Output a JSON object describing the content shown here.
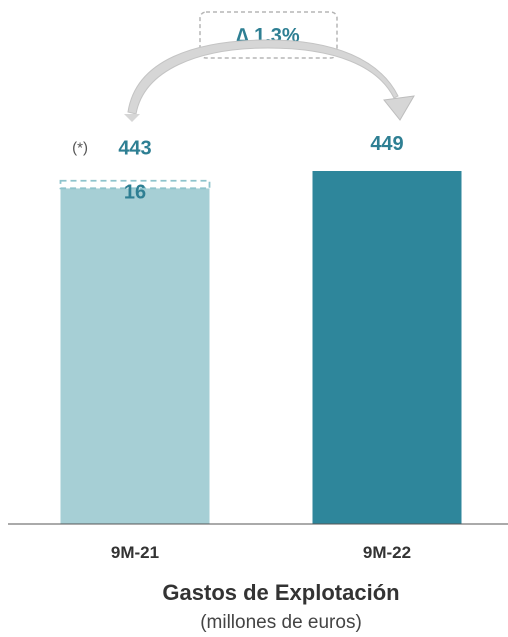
{
  "chart_data": {
    "type": "bar",
    "categories": [
      "9M-21",
      "9M-22"
    ],
    "values": [
      443,
      449
    ],
    "stacked_top": {
      "category": "9M-21",
      "value": 16,
      "style": "dashed"
    },
    "ylim": [
      0,
      449
    ],
    "title": "Gastos de Explotación",
    "subtitle": "(millones de euros)",
    "note": "(*)",
    "change_label": "∆ 1,3%",
    "colors": {
      "bar_light": "#a6cfd5",
      "bar_dark": "#2e869b",
      "label": "#2e7f93",
      "dashed": "#8ec3cc"
    }
  }
}
